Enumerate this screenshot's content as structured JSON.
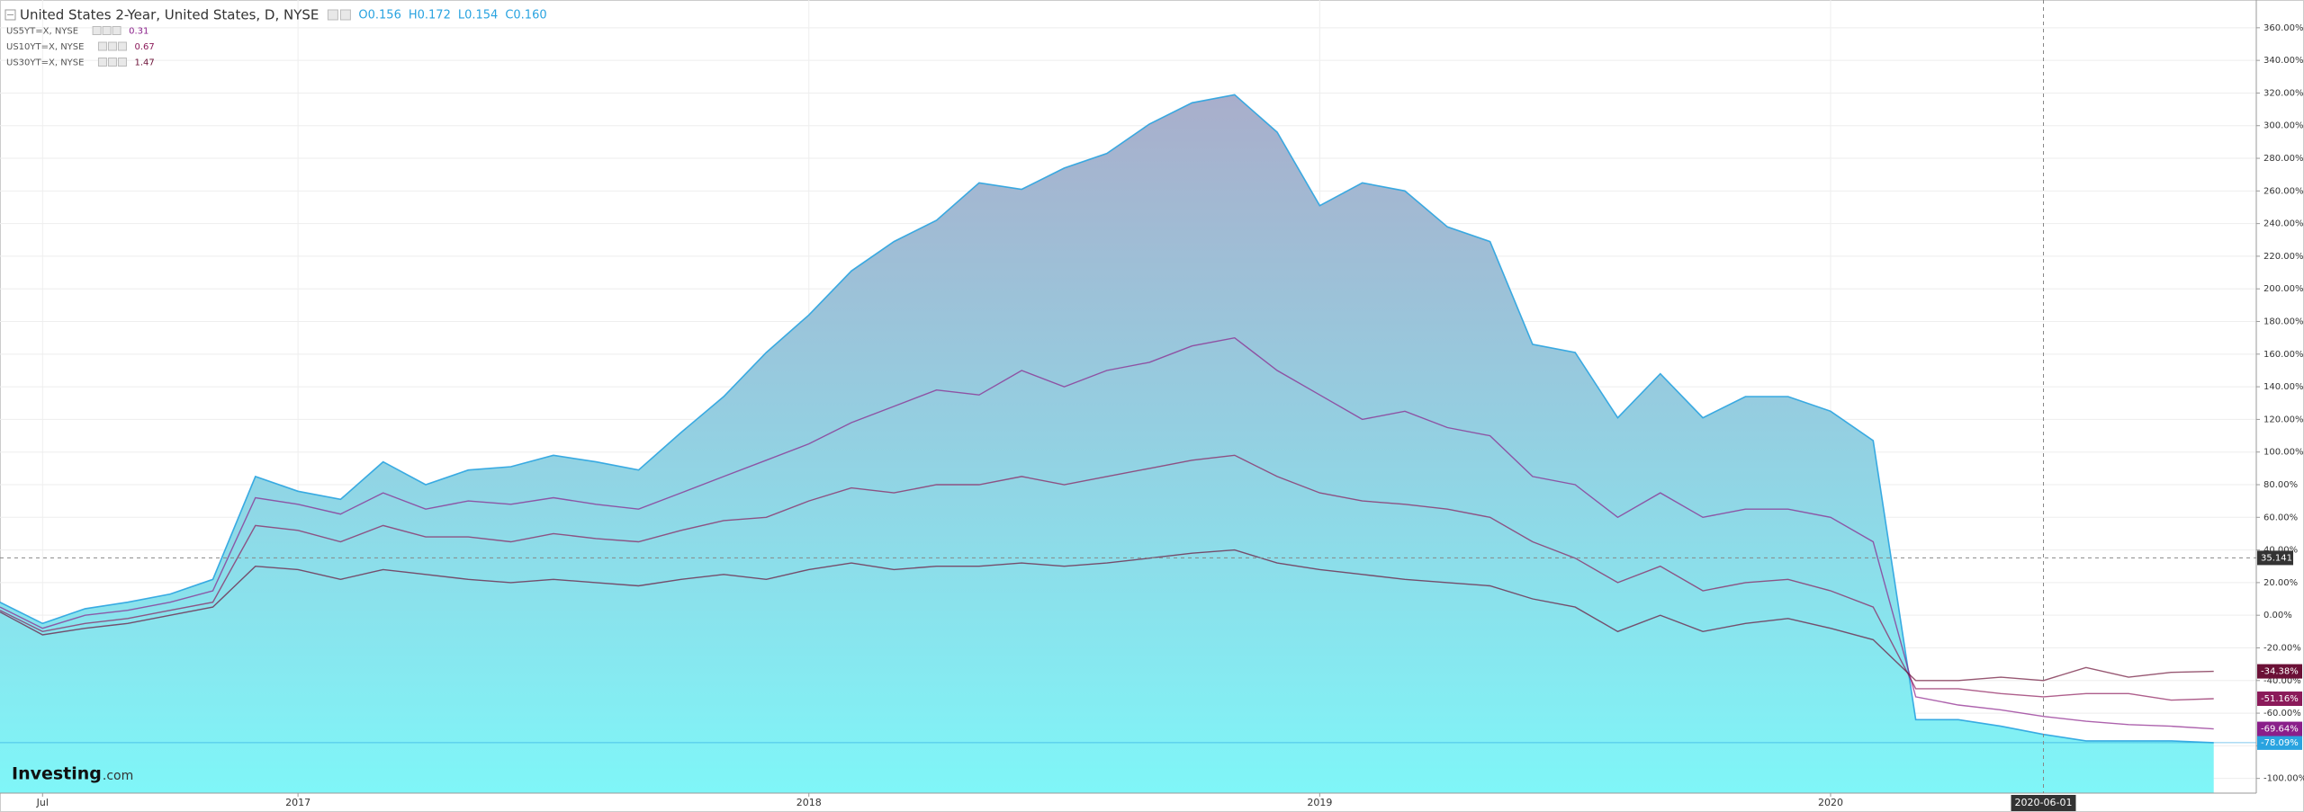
{
  "chart_data": {
    "type": "line",
    "title": "United States 2-Year, United States, D, NYSE",
    "ohlc": [
      "O0.156",
      "H0.172",
      "L0.154",
      "C0.160"
    ],
    "logo": {
      "brand": "Investing",
      "suffix": ".com"
    },
    "grid": true,
    "x": [
      "2016-06",
      "2016-07",
      "2016-08",
      "2016-09",
      "2016-10",
      "2016-11",
      "2016-12",
      "2017-01",
      "2017-02",
      "2017-03",
      "2017-04",
      "2017-05",
      "2017-06",
      "2017-07",
      "2017-08",
      "2017-09",
      "2017-10",
      "2017-11",
      "2017-12",
      "2018-01",
      "2018-02",
      "2018-03",
      "2018-04",
      "2018-05",
      "2018-06",
      "2018-07",
      "2018-08",
      "2018-09",
      "2018-10",
      "2018-11",
      "2018-12",
      "2019-01",
      "2019-02",
      "2019-03",
      "2019-04",
      "2019-05",
      "2019-06",
      "2019-07",
      "2019-08",
      "2019-09",
      "2019-10",
      "2019-11",
      "2019-12",
      "2020-01",
      "2020-02",
      "2020-03",
      "2020-04",
      "2020-05",
      "2020-06",
      "2020-07",
      "2020-08",
      "2020-09",
      "2020-10"
    ],
    "xlim": [
      "2016-06",
      "2020-11"
    ],
    "xticks": [
      {
        "value": "2016-07",
        "label": "Jul"
      },
      {
        "value": "2017-01",
        "label": "2017"
      },
      {
        "value": "2018-01",
        "label": "2018"
      },
      {
        "value": "2019-01",
        "label": "2019"
      },
      {
        "value": "2020-01",
        "label": "2020"
      }
    ],
    "ylim": [
      -109,
      377
    ],
    "yticks": [
      {
        "value": -100,
        "label": "-100.00%"
      },
      {
        "value": -80,
        "label": "-80.00%"
      },
      {
        "value": -60,
        "label": "-60.00%"
      },
      {
        "value": -40,
        "label": "-40.00%"
      },
      {
        "value": -20,
        "label": "-20.00%"
      },
      {
        "value": 0,
        "label": "0.00%"
      },
      {
        "value": 20,
        "label": "20.00%"
      },
      {
        "value": 40,
        "label": "40.00%"
      },
      {
        "value": 60,
        "label": "60.00%"
      },
      {
        "value": 80,
        "label": "80.00%"
      },
      {
        "value": 100,
        "label": "100.00%"
      },
      {
        "value": 120,
        "label": "120.00%"
      },
      {
        "value": 140,
        "label": "140.00%"
      },
      {
        "value": 160,
        "label": "160.00%"
      },
      {
        "value": 180,
        "label": "180.00%"
      },
      {
        "value": 200,
        "label": "200.00%"
      },
      {
        "value": 220,
        "label": "220.00%"
      },
      {
        "value": 240,
        "label": "240.00%"
      },
      {
        "value": 260,
        "label": "260.00%"
      },
      {
        "value": 280,
        "label": "280.00%"
      },
      {
        "value": 300,
        "label": "300.00%"
      },
      {
        "value": 320,
        "label": "320.00%"
      },
      {
        "value": 340,
        "label": "340.00%"
      },
      {
        "value": 360,
        "label": "360.00%"
      }
    ],
    "crosshair": {
      "x": "2020-06-01",
      "y": 35.141
    },
    "series": [
      {
        "name": "United States 2-Year, United States, D, NYSE",
        "color": "#29a3e0",
        "area": true,
        "values": [
          8,
          -5,
          4,
          8,
          13,
          22,
          85,
          76,
          71,
          94,
          80,
          89,
          91,
          98,
          94,
          89,
          112,
          134,
          161,
          184,
          211,
          229,
          242,
          265,
          261,
          274,
          283,
          301,
          314,
          319,
          296,
          251,
          265,
          260,
          238,
          229,
          166,
          161,
          121,
          148,
          121,
          134,
          134,
          125,
          107,
          -64,
          -64,
          -68,
          -73,
          -77,
          -77,
          -77,
          -78.09
        ],
        "value_labels": [
          null,
          null,
          null,
          null,
          null,
          null,
          null,
          null,
          null,
          null,
          null,
          null,
          null,
          null,
          null,
          null,
          null,
          null,
          null,
          null,
          null,
          null,
          null,
          null,
          null,
          null,
          null,
          null,
          null,
          null,
          null,
          null,
          null,
          null,
          null,
          null,
          null,
          null,
          null,
          null,
          null,
          null,
          null,
          null,
          null,
          null,
          null,
          null,
          null,
          null,
          null,
          null,
          "-78.09%"
        ]
      },
      {
        "name": "US5YT=X, NYSE",
        "last": 0.31,
        "color": "#8a1f8a",
        "values": [
          5,
          -8,
          0,
          3,
          8,
          15,
          72,
          68,
          62,
          75,
          65,
          70,
          68,
          72,
          68,
          65,
          75,
          85,
          95,
          105,
          118,
          128,
          138,
          135,
          150,
          140,
          150,
          155,
          165,
          170,
          150,
          135,
          120,
          125,
          115,
          110,
          85,
          80,
          60,
          75,
          60,
          65,
          65,
          60,
          45,
          -50,
          -55,
          -58,
          -62,
          -65,
          -67,
          -68,
          -69.64
        ],
        "value_labels": [
          null,
          null,
          null,
          null,
          null,
          null,
          null,
          null,
          null,
          null,
          null,
          null,
          null,
          null,
          null,
          null,
          null,
          null,
          null,
          null,
          null,
          null,
          null,
          null,
          null,
          null,
          null,
          null,
          null,
          null,
          null,
          null,
          null,
          null,
          null,
          null,
          null,
          null,
          null,
          null,
          null,
          null,
          null,
          null,
          null,
          null,
          null,
          null,
          null,
          null,
          null,
          null,
          "-69.64%"
        ]
      },
      {
        "name": "US10YT=X, NYSE",
        "last": 0.67,
        "color": "#8b1a5a",
        "values": [
          3,
          -10,
          -5,
          -2,
          3,
          8,
          55,
          52,
          45,
          55,
          48,
          48,
          45,
          50,
          47,
          45,
          52,
          58,
          60,
          70,
          78,
          75,
          80,
          80,
          85,
          80,
          85,
          90,
          95,
          98,
          85,
          75,
          70,
          68,
          65,
          60,
          45,
          35,
          20,
          30,
          15,
          20,
          22,
          15,
          5,
          -45,
          -45,
          -48,
          -50,
          -48,
          -48,
          -52,
          -51.16
        ],
        "value_labels": [
          null,
          null,
          null,
          null,
          null,
          null,
          null,
          null,
          null,
          null,
          null,
          null,
          null,
          null,
          null,
          null,
          null,
          null,
          null,
          null,
          null,
          null,
          null,
          null,
          null,
          null,
          null,
          null,
          null,
          null,
          null,
          null,
          null,
          null,
          null,
          null,
          null,
          null,
          null,
          null,
          null,
          null,
          null,
          null,
          null,
          null,
          null,
          null,
          null,
          null,
          null,
          null,
          "-51.16%"
        ]
      },
      {
        "name": "US30YT=X, NYSE",
        "last": 1.47,
        "color": "#6b1036",
        "values": [
          2,
          -12,
          -8,
          -5,
          0,
          5,
          30,
          28,
          22,
          28,
          25,
          22,
          20,
          22,
          20,
          18,
          22,
          25,
          22,
          28,
          32,
          28,
          30,
          30,
          32,
          30,
          32,
          35,
          38,
          40,
          32,
          28,
          25,
          22,
          20,
          18,
          10,
          5,
          -10,
          0,
          -10,
          -5,
          -2,
          -8,
          -15,
          -40,
          -40,
          -38,
          -40,
          -32,
          -38,
          -35,
          -34.38
        ],
        "value_labels": [
          null,
          null,
          null,
          null,
          null,
          null,
          null,
          null,
          null,
          null,
          null,
          null,
          null,
          null,
          null,
          null,
          null,
          null,
          null,
          null,
          null,
          null,
          null,
          null,
          null,
          null,
          null,
          null,
          null,
          null,
          null,
          null,
          null,
          null,
          null,
          null,
          null,
          null,
          null,
          null,
          null,
          null,
          null,
          null,
          null,
          null,
          null,
          null,
          null,
          null,
          null,
          null,
          "-34.38%"
        ]
      }
    ]
  }
}
